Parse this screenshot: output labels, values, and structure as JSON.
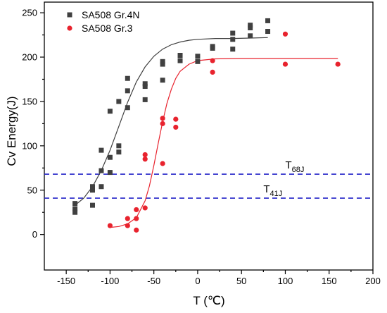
{
  "chart_data": {
    "type": "scatter",
    "xlabel": "T (℃)",
    "ylabel": "Cv Energy(J)",
    "xlim": [
      -175,
      200
    ],
    "ylim": [
      -40,
      262
    ],
    "xticks": [
      -150,
      -100,
      -50,
      0,
      50,
      100,
      150,
      200
    ],
    "yticks": [
      0,
      50,
      100,
      150,
      200,
      250
    ],
    "legend_position": "top-left",
    "grid": false,
    "series": [
      {
        "name": "SA508 Gr.4N",
        "marker": "square",
        "color": "#404040",
        "points": [
          [
            -140,
            25
          ],
          [
            -140,
            29
          ],
          [
            -140,
            35
          ],
          [
            -120,
            33
          ],
          [
            -120,
            50
          ],
          [
            -120,
            54
          ],
          [
            -110,
            54
          ],
          [
            -110,
            72
          ],
          [
            -110,
            95
          ],
          [
            -100,
            70
          ],
          [
            -100,
            87
          ],
          [
            -100,
            139
          ],
          [
            -90,
            93
          ],
          [
            -90,
            100
          ],
          [
            -90,
            150
          ],
          [
            -80,
            143
          ],
          [
            -80,
            162
          ],
          [
            -80,
            176
          ],
          [
            -60,
            152
          ],
          [
            -60,
            167
          ],
          [
            -60,
            170
          ],
          [
            -40,
            174
          ],
          [
            -40,
            192
          ],
          [
            -40,
            195
          ],
          [
            -20,
            196
          ],
          [
            -20,
            202
          ],
          [
            0,
            195
          ],
          [
            0,
            201
          ],
          [
            17,
            210
          ],
          [
            17,
            212
          ],
          [
            40,
            209
          ],
          [
            40,
            220
          ],
          [
            40,
            227
          ],
          [
            60,
            224
          ],
          [
            60,
            233
          ],
          [
            60,
            236
          ],
          [
            80,
            229
          ],
          [
            80,
            241
          ]
        ],
        "fit": [
          [
            -140,
            33
          ],
          [
            -130,
            41
          ],
          [
            -120,
            54
          ],
          [
            -110,
            72
          ],
          [
            -100,
            95
          ],
          [
            -90,
            122
          ],
          [
            -80,
            149
          ],
          [
            -70,
            172
          ],
          [
            -60,
            189
          ],
          [
            -50,
            201
          ],
          [
            -40,
            209
          ],
          [
            -30,
            214
          ],
          [
            -20,
            217
          ],
          [
            -10,
            219
          ],
          [
            0,
            220
          ],
          [
            20,
            221
          ],
          [
            40,
            221
          ],
          [
            60,
            221.5
          ],
          [
            80,
            222
          ]
        ]
      },
      {
        "name": "SA508 Gr.3",
        "marker": "circle",
        "color": "#e8232e",
        "points": [
          [
            -100,
            10
          ],
          [
            -80,
            10
          ],
          [
            -80,
            18
          ],
          [
            -70,
            5
          ],
          [
            -70,
            18
          ],
          [
            -70,
            28
          ],
          [
            -60,
            30
          ],
          [
            -60,
            85
          ],
          [
            -60,
            90
          ],
          [
            -40,
            80
          ],
          [
            -40,
            125
          ],
          [
            -40,
            131
          ],
          [
            -25,
            121
          ],
          [
            -25,
            130
          ],
          [
            17,
            183
          ],
          [
            17,
            196
          ],
          [
            100,
            192
          ],
          [
            100,
            226
          ],
          [
            160,
            192
          ]
        ],
        "fit": [
          [
            -100,
            8
          ],
          [
            -90,
            9
          ],
          [
            -80,
            12
          ],
          [
            -70,
            19
          ],
          [
            -60,
            38
          ],
          [
            -55,
            55
          ],
          [
            -50,
            78
          ],
          [
            -45,
            103
          ],
          [
            -40,
            127
          ],
          [
            -35,
            148
          ],
          [
            -30,
            164
          ],
          [
            -25,
            176
          ],
          [
            -20,
            184
          ],
          [
            -10,
            192
          ],
          [
            0,
            196
          ],
          [
            20,
            198
          ],
          [
            50,
            198.5
          ],
          [
            100,
            198.5
          ],
          [
            160,
            198.5
          ]
        ]
      }
    ],
    "reference_lines": [
      {
        "y": 68,
        "label": "T",
        "subscript": "68J",
        "color": "#2323c8",
        "style": "dashed",
        "label_x": 100
      },
      {
        "y": 41,
        "label": "T",
        "subscript": "41J",
        "color": "#2323c8",
        "style": "dashed",
        "label_x": 75
      }
    ]
  }
}
